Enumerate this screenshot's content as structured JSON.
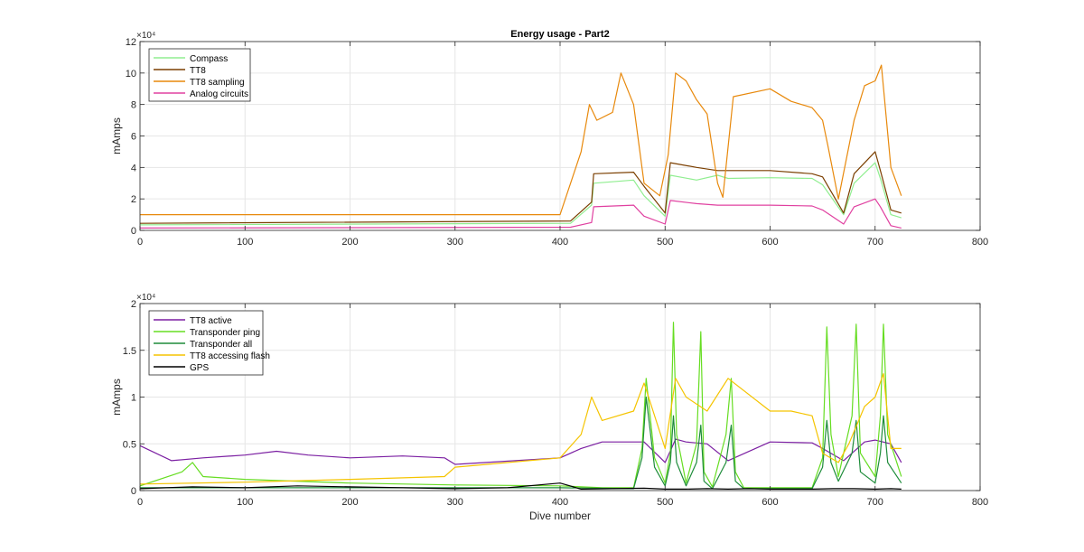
{
  "figure": {
    "background": "#ffffff"
  },
  "chart_data": [
    {
      "type": "line",
      "title": "Energy usage - Part2",
      "xlabel": "",
      "ylabel": "mAmps",
      "y_exponent": "×10⁴",
      "xlim": [
        0,
        800
      ],
      "ylim": [
        0,
        120000
      ],
      "xticks": [
        0,
        100,
        200,
        300,
        400,
        500,
        600,
        700,
        800
      ],
      "xtick_labels": [
        "0",
        "100",
        "200",
        "300",
        "400",
        "500",
        "600",
        "700",
        "800"
      ],
      "yticks": [
        0,
        20000,
        40000,
        60000,
        80000,
        100000,
        120000
      ],
      "ytick_labels": [
        "0",
        "2",
        "4",
        "6",
        "8",
        "10",
        "12"
      ],
      "grid": true,
      "legend_position": "top-left",
      "series": [
        {
          "name": "Compass",
          "color": "#90ee90",
          "x": [
            0,
            410,
            430,
            432,
            470,
            480,
            500,
            505,
            530,
            550,
            560,
            600,
            640,
            650,
            670,
            680,
            700,
            705,
            715,
            725
          ],
          "y": [
            3500,
            4500,
            16000,
            30000,
            32000,
            22000,
            9000,
            35000,
            32000,
            35000,
            33000,
            33500,
            33000,
            29000,
            10000,
            30000,
            43000,
            33000,
            10000,
            8000
          ]
        },
        {
          "name": "TT8",
          "color": "#7b3f00",
          "x": [
            0,
            410,
            430,
            432,
            470,
            480,
            500,
            505,
            530,
            550,
            560,
            600,
            640,
            650,
            670,
            680,
            700,
            705,
            715,
            725
          ],
          "y": [
            4500,
            6000,
            18000,
            36000,
            37000,
            28000,
            11000,
            43000,
            40000,
            38000,
            38000,
            38000,
            36000,
            34000,
            11000,
            36000,
            50000,
            38000,
            13000,
            11000
          ]
        },
        {
          "name": "TT8 sampling",
          "color": "#e8890c",
          "x": [
            0,
            400,
            420,
            428,
            435,
            450,
            458,
            470,
            480,
            495,
            503,
            510,
            520,
            530,
            540,
            550,
            555,
            565,
            600,
            620,
            640,
            650,
            655,
            665,
            680,
            690,
            700,
            706,
            715,
            725
          ],
          "y": [
            10000,
            10000,
            50000,
            80000,
            70000,
            75000,
            100000,
            80000,
            30000,
            22000,
            48000,
            100000,
            95000,
            83000,
            74000,
            30000,
            21000,
            85000,
            90000,
            82000,
            78000,
            70000,
            54000,
            20000,
            70000,
            92000,
            95000,
            105000,
            40000,
            22000
          ]
        },
        {
          "name": "Analog circuits",
          "color": "#e040a0",
          "x": [
            0,
            410,
            430,
            432,
            470,
            480,
            500,
            505,
            530,
            550,
            560,
            600,
            640,
            650,
            670,
            680,
            700,
            705,
            715,
            725
          ],
          "y": [
            1500,
            2000,
            5000,
            15000,
            16000,
            9000,
            4000,
            19000,
            17000,
            16000,
            16000,
            16000,
            15500,
            13000,
            4000,
            15000,
            20000,
            15000,
            3000,
            1500
          ]
        }
      ]
    },
    {
      "type": "line",
      "title": "",
      "xlabel": "Dive number",
      "ylabel": "mAmps",
      "y_exponent": "×10⁴",
      "xlim": [
        0,
        800
      ],
      "ylim": [
        0,
        20000
      ],
      "xticks": [
        0,
        100,
        200,
        300,
        400,
        500,
        600,
        700,
        800
      ],
      "xtick_labels": [
        "0",
        "100",
        "200",
        "300",
        "400",
        "500",
        "600",
        "700",
        "800"
      ],
      "yticks": [
        0,
        5000,
        10000,
        15000,
        20000
      ],
      "ytick_labels": [
        "0",
        "0.5",
        "1",
        "1.5",
        "2"
      ],
      "grid": true,
      "legend_position": "top-left",
      "series": [
        {
          "name": "TT8 active",
          "color": "#7b1fa2",
          "x": [
            0,
            30,
            60,
            100,
            130,
            160,
            200,
            250,
            290,
            300,
            400,
            420,
            440,
            480,
            500,
            510,
            520,
            540,
            560,
            600,
            640,
            650,
            670,
            690,
            700,
            715,
            725
          ],
          "y": [
            4800,
            3200,
            3500,
            3800,
            4200,
            3800,
            3500,
            3700,
            3500,
            2800,
            3500,
            4500,
            5200,
            5200,
            3000,
            5500,
            5200,
            5000,
            3200,
            5200,
            5100,
            4500,
            3200,
            5200,
            5400,
            5000,
            3000
          ]
        },
        {
          "name": "Transponder ping",
          "color": "#66dd22",
          "x": [
            0,
            40,
            50,
            60,
            100,
            200,
            300,
            400,
            440,
            470,
            478,
            482,
            490,
            500,
            505,
            508,
            511,
            520,
            530,
            534,
            537,
            545,
            558,
            563,
            567,
            575,
            640,
            650,
            654,
            658,
            665,
            678,
            682,
            686,
            700,
            705,
            708,
            712,
            725
          ],
          "y": [
            500,
            2000,
            3000,
            1500,
            1200,
            800,
            600,
            500,
            300,
            300,
            4500,
            12000,
            3500,
            800,
            4000,
            18000,
            6000,
            800,
            5000,
            17000,
            2000,
            400,
            6000,
            12000,
            2000,
            300,
            300,
            3500,
            17500,
            6000,
            1500,
            8000,
            17800,
            4000,
            1500,
            8000,
            17800,
            6000,
            1500
          ]
        },
        {
          "name": "Transponder all",
          "color": "#1e8c3a",
          "x": [
            0,
            400,
            470,
            478,
            482,
            490,
            500,
            505,
            508,
            511,
            520,
            530,
            534,
            537,
            545,
            558,
            563,
            567,
            575,
            640,
            650,
            654,
            658,
            665,
            678,
            682,
            686,
            700,
            705,
            708,
            712,
            725
          ],
          "y": [
            300,
            300,
            200,
            3500,
            10000,
            2500,
            500,
            3000,
            8000,
            3000,
            500,
            3000,
            7000,
            1000,
            200,
            3000,
            7000,
            1000,
            200,
            200,
            2500,
            7500,
            3000,
            1000,
            4000,
            7500,
            2000,
            800,
            4000,
            8000,
            3000,
            800
          ]
        },
        {
          "name": "TT8 accessing flash",
          "color": "#f5c400",
          "x": [
            0,
            100,
            200,
            290,
            300,
            400,
            420,
            430,
            440,
            470,
            480,
            500,
            510,
            520,
            540,
            560,
            600,
            620,
            640,
            650,
            665,
            675,
            690,
            700,
            708,
            715,
            725
          ],
          "y": [
            700,
            900,
            1200,
            1500,
            2500,
            3500,
            6000,
            10000,
            7500,
            8500,
            11500,
            4500,
            12000,
            10000,
            8500,
            12000,
            8500,
            8500,
            8000,
            4000,
            3000,
            5000,
            9000,
            10000,
            12500,
            4500,
            4500
          ]
        },
        {
          "name": "GPS",
          "color": "#000000",
          "x": [
            0,
            50,
            100,
            150,
            200,
            250,
            300,
            350,
            400,
            420,
            450,
            480,
            500,
            520,
            540,
            560,
            580,
            600,
            640,
            660,
            680,
            700,
            715,
            725
          ],
          "y": [
            200,
            400,
            300,
            500,
            400,
            300,
            200,
            300,
            800,
            150,
            200,
            250,
            150,
            150,
            200,
            150,
            200,
            150,
            150,
            200,
            200,
            150,
            200,
            150
          ]
        }
      ]
    }
  ]
}
